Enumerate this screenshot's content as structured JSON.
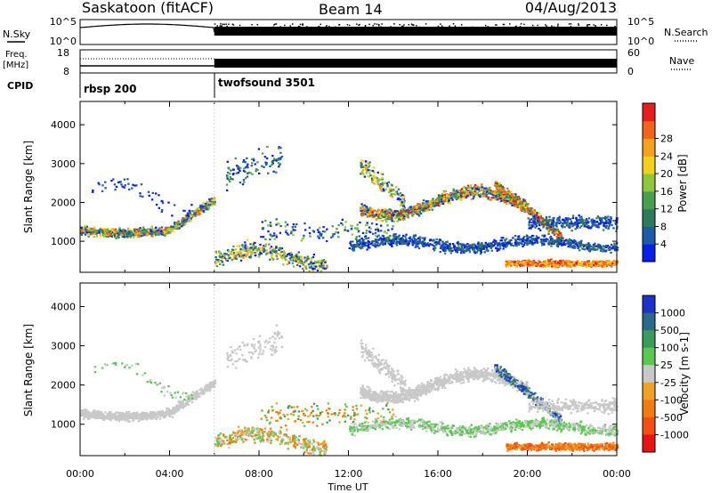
{
  "header": {
    "station": "Saskatoon (fitACF)",
    "beam": "Beam 14",
    "date": "04/Aug/2013"
  },
  "left_labels": {
    "nsky": "N.Sky",
    "freq": "Freq.",
    "freq_unit": "[MHz]",
    "cpid": "CPID"
  },
  "right_labels": {
    "nsearch": "N.Search",
    "nave": "Nave"
  },
  "noise_axis": {
    "left_ticks": [
      "10^5",
      "10^0"
    ],
    "right_ticks": [
      "10^5",
      "10^0"
    ]
  },
  "freq_axis": {
    "left_ticks": [
      "18",
      "8"
    ],
    "right_ticks": [
      "60",
      "0"
    ]
  },
  "cpid_segments": [
    {
      "label": "rbsp 200",
      "start_hour": 0,
      "end_hour": 6
    },
    {
      "label": "twofsound 3501",
      "start_hour": 6,
      "end_hour": 24
    }
  ],
  "chart_data": [
    {
      "type": "heatmap",
      "panel": "power",
      "ylabel": "Slant Range [km]",
      "ylim": [
        200,
        4600
      ],
      "xlim_hours": [
        0,
        24
      ],
      "yticks": [
        1000,
        2000,
        3000,
        4000
      ],
      "colorbar": {
        "label": "Power [dB]",
        "ticks": [
          "4",
          "8",
          "12",
          "16",
          "20",
          "24",
          "28"
        ],
        "colors": [
          "#0a1fe6",
          "#1e5aa8",
          "#2f7a5a",
          "#4a9e52",
          "#8fc63e",
          "#f0d21e",
          "#f5a01e",
          "#f0641e",
          "#e61e1e"
        ]
      }
    },
    {
      "type": "heatmap",
      "panel": "velocity",
      "ylabel": "Slant Range [km]",
      "ylim": [
        200,
        4600
      ],
      "xlim_hours": [
        0,
        24
      ],
      "yticks": [
        1000,
        2000,
        3000,
        4000
      ],
      "xlabel": "Time UT",
      "xticks": [
        "00:00",
        "04:00",
        "08:00",
        "12:00",
        "16:00",
        "20:00",
        "00:00"
      ],
      "colorbar": {
        "label": "Velocity [m s-1]",
        "ticks": [
          "1000",
          "500",
          "100",
          "25",
          "-25",
          "-100",
          "-500",
          "-1000"
        ],
        "colors": [
          "#1e32c8",
          "#2a6a8c",
          "#3c9a5a",
          "#5ac850",
          "#c8c8c8",
          "#f0a028",
          "#f07a14",
          "#f05014",
          "#e61414"
        ]
      }
    }
  ]
}
